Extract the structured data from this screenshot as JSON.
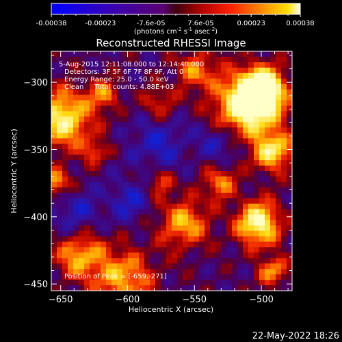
{
  "colorbar": {
    "tick_labels": [
      "-0.00038",
      "-0.00023",
      "-7.6e-05",
      "7.6e-05",
      "0.00023",
      "0.00038"
    ],
    "ticks": [
      -0.00038,
      -0.00023,
      -7.6e-05,
      7.6e-05,
      0.00023,
      0.00038
    ],
    "range": [
      -0.00038,
      0.00038
    ],
    "unit_parts": [
      "(photons cm",
      "-2",
      " s",
      "-1",
      " asec",
      "-2",
      ")"
    ]
  },
  "chart_data": {
    "type": "heatmap",
    "title": "Reconstructed RHESSI Image",
    "xlabel": "Heliocentric X (arcsec)",
    "ylabel": "Heliocentric Y (arcsec)",
    "xlim": [
      -657,
      -477
    ],
    "ylim": [
      -455,
      -277
    ],
    "xticks": [
      -650,
      -600,
      -550,
      -500
    ],
    "yticks": [
      -450,
      -400,
      -350,
      -300
    ],
    "colormap": "rhessi-hot (blue-purple-red-orange-yellow-white)",
    "peak_position": [
      -659,
      -271
    ],
    "annotations": [
      "5-Aug-2015 12:11:08.000 to 12:14:40.000",
      "Detectors: 3F 5F 6F 7F 8F 9F, Att 0",
      "Energy Range: 25.0 - 50.0 keV",
      "Clean     Total counts: 4.88E+03"
    ],
    "peak_label": "Position of Peak = [-659,-271]",
    "grid": false
  },
  "footer": {
    "timestamp": "22-May-2022 18:26"
  }
}
